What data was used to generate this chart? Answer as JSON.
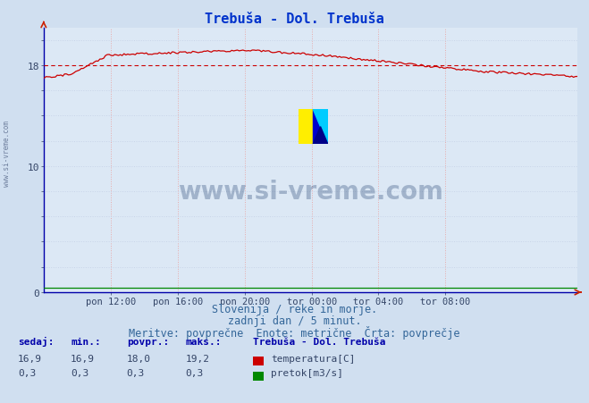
{
  "title": "Trebuša - Dol. Trebuša",
  "title_color": "#0033cc",
  "bg_color": "#d0dff0",
  "plot_bg_color": "#dce8f5",
  "axis_color": "#0000aa",
  "line_color_temp": "#cc0000",
  "line_color_flow": "#008800",
  "dashed_line_color": "#cc0000",
  "dashed_line_value": 18.0,
  "tick_color": "#334466",
  "yticks": [
    0,
    2,
    4,
    6,
    8,
    10,
    12,
    14,
    16,
    18,
    20
  ],
  "ytick_labels_show": [
    0,
    10,
    18
  ],
  "ymin": 0,
  "ymax": 21.0,
  "xtick_labels": [
    "pon 12:00",
    "pon 16:00",
    "pon 20:00",
    "tor 00:00",
    "tor 04:00",
    "tor 08:00"
  ],
  "subtitle1": "Slovenija / reke in morje.",
  "subtitle2": "zadnji dan / 5 minut.",
  "subtitle3": "Meritve: povprečne  Enote: metrične  Črta: povprečje",
  "footer_color": "#336699",
  "watermark": "www.si-vreme.com",
  "watermark_color": "#1a3a6a",
  "legend_title": "Trebuša - Dol. Trebuša",
  "legend_items": [
    "temperatura[C]",
    "pretok[m3/s]"
  ],
  "legend_colors": [
    "#cc0000",
    "#008800"
  ],
  "stats_headers": [
    "sedaj:",
    "min.:",
    "povpr.:",
    "maks.:"
  ],
  "stats_temp": [
    16.9,
    16.9,
    18.0,
    19.2
  ],
  "stats_flow": [
    0.3,
    0.3,
    0.3,
    0.3
  ],
  "n_points": 288,
  "vgrid_color": "#e8aaaa",
  "hgrid_color": "#c8d4e8"
}
